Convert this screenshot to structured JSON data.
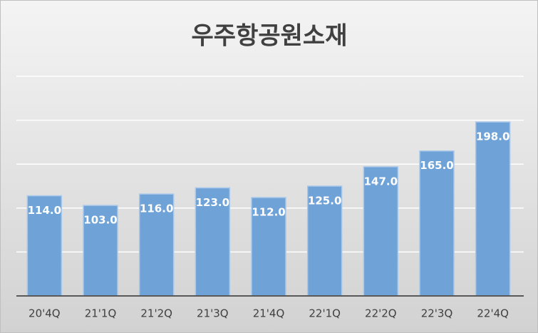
{
  "chart_data": {
    "type": "bar",
    "title": "우주항공원소재",
    "categories": [
      "20'4Q",
      "21'1Q",
      "21'2Q",
      "21'3Q",
      "21'4Q",
      "22'1Q",
      "22'2Q",
      "22'3Q",
      "22'4Q"
    ],
    "values": [
      114,
      103,
      116,
      123,
      112,
      125,
      147,
      165,
      198
    ],
    "value_labels": [
      "114.0",
      "103.0",
      "116.0",
      "123.0",
      "112.0",
      "125.0",
      "147.0",
      "165.0",
      "198.0"
    ],
    "color": "#6fa3d8",
    "ylim": [
      0,
      250
    ],
    "yticks": [
      0,
      50,
      100,
      150,
      200,
      250
    ],
    "grid": true
  }
}
